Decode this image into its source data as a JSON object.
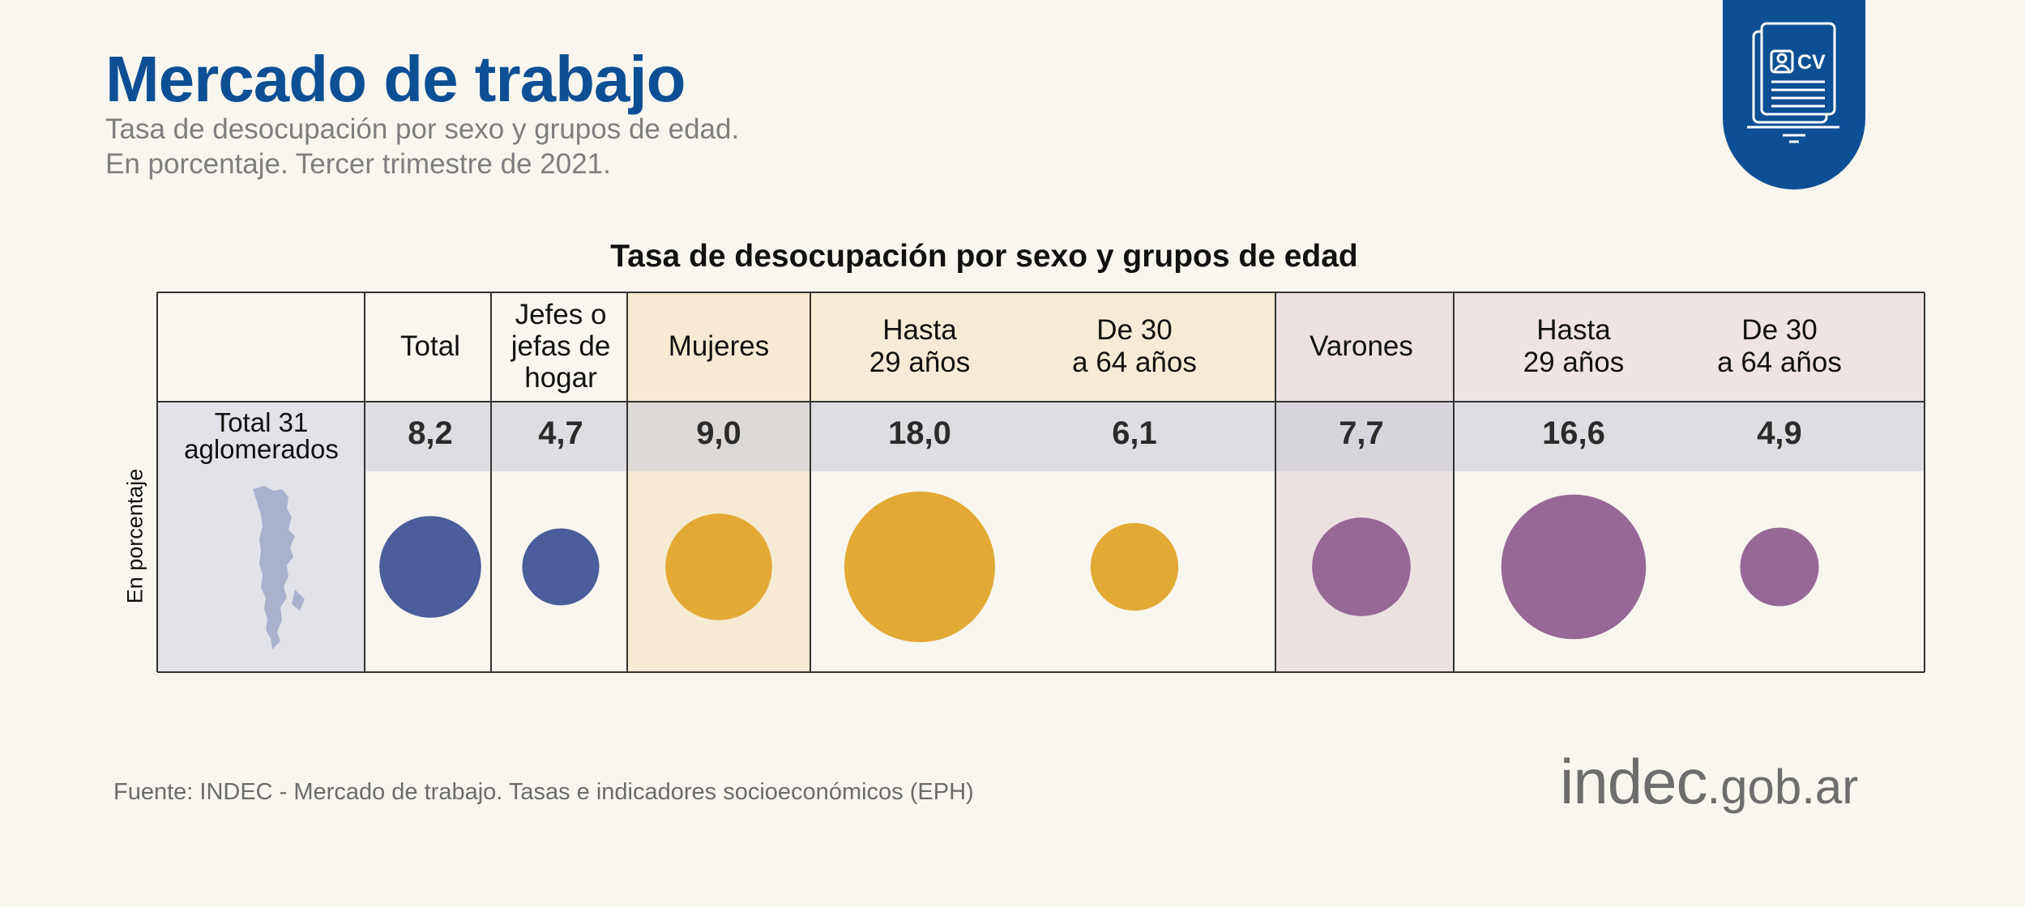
{
  "header": {
    "title": "Mercado de trabajo",
    "subtitle_1": "Tasa de desocupación por sexo y grupos de edad.",
    "subtitle_2": "En porcentaje. Tercer trimestre de 2021.",
    "badge_text": "CV"
  },
  "chart_data": {
    "type": "bubble-table",
    "title": "Tasa de desocupación por sexo y grupos de edad",
    "ylabel": "En porcentaje",
    "row_label": "Total 31\naglomerados",
    "categories": [
      "Total",
      "Jefes o\njefas de\nhogar",
      "Mujeres",
      "Hasta\n29 años",
      "De 30\na 64 años",
      "Varones",
      "Hasta\n29 años",
      "De 30\na 64 años"
    ],
    "values": [
      8.2,
      4.7,
      9.0,
      18.0,
      6.1,
      7.7,
      16.6,
      4.9
    ],
    "value_labels": [
      "8,2",
      "4,7",
      "9,0",
      "18,0",
      "6,1",
      "7,7",
      "16,6",
      "4,9"
    ],
    "groups": [
      "total",
      "total",
      "mujeres",
      "mujeres",
      "mujeres",
      "varones",
      "varones",
      "varones"
    ],
    "colors": {
      "total": "#4b5d9a",
      "mujeres": "#e2aa35",
      "varones": "#976796"
    }
  },
  "footer": {
    "source": "Fuente: INDEC - Mercado de trabajo. Tasas e indicadores socioeconómicos (EPH)",
    "logo_main": "indec",
    "logo_domain": ".gob.ar"
  }
}
